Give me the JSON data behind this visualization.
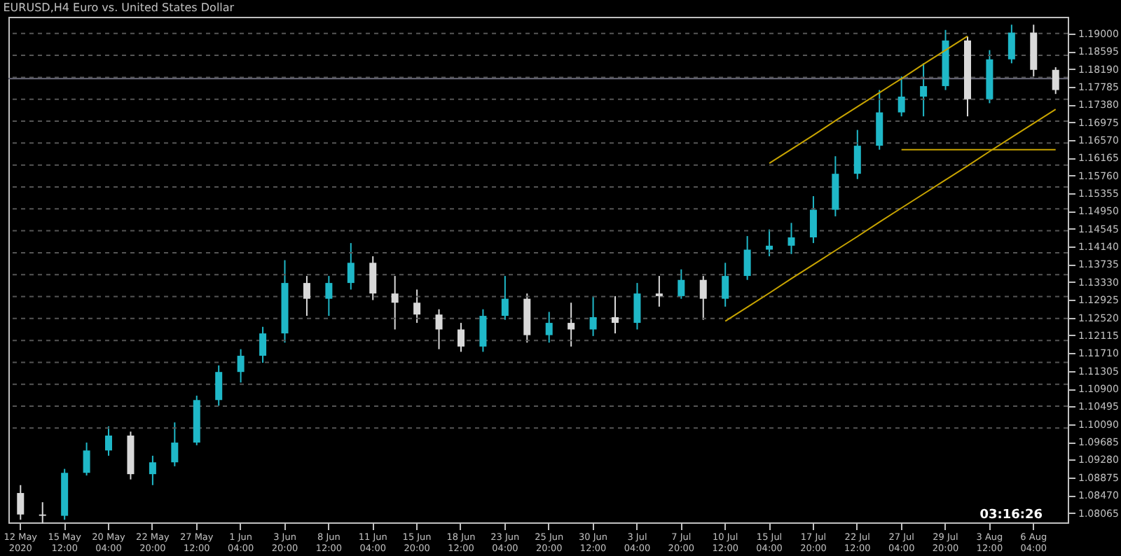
{
  "chart_data": {
    "type": "candlestick",
    "title": "EURUSD,H4  Euro vs. United States Dollar",
    "categories": [
      "12 May 2020",
      null,
      "15 May 12:00",
      null,
      "20 May 04:00",
      null,
      "22 May 20:00",
      null,
      "27 May 12:00",
      null,
      "1 Jun 04:00",
      null,
      "3 Jun 20:00",
      null,
      "8 Jun 12:00",
      null,
      "11 Jun 04:00",
      null,
      "15 Jun 20:00",
      null,
      "18 Jun 12:00",
      null,
      "23 Jun 04:00",
      null,
      "25 Jun 20:00",
      null,
      "30 Jun 12:00",
      null,
      "3 Jul 04:00",
      null,
      "7 Jul 20:00",
      null,
      "10 Jul 12:00",
      null,
      "15 Jul 04:00",
      null,
      "17 Jul 20:00",
      null,
      "22 Jul 12:00",
      null,
      "27 Jul 04:00",
      null,
      "29 Jul 20:00",
      null,
      "3 Aug 12:00",
      null,
      "6 Aug 04:00",
      null
    ],
    "ohlc": [
      [
        1.0852,
        1.087,
        1.0791,
        1.0803
      ],
      [
        1.0803,
        1.0831,
        1.0782,
        1.08
      ],
      [
        1.08,
        1.0907,
        1.0791,
        1.0898
      ],
      [
        1.0898,
        1.0967,
        1.0892,
        1.0949
      ],
      [
        1.0949,
        1.1004,
        1.0937,
        1.0983
      ],
      [
        1.0983,
        1.0992,
        1.0883,
        1.0895
      ],
      [
        1.0895,
        1.0937,
        1.087,
        1.0922
      ],
      [
        1.0922,
        1.1013,
        1.0913,
        1.0967
      ],
      [
        1.0967,
        1.1074,
        1.0961,
        1.1064
      ],
      [
        1.1064,
        1.1143,
        1.1051,
        1.1128
      ],
      [
        1.1128,
        1.118,
        1.1104,
        1.1165
      ],
      [
        1.1165,
        1.1231,
        1.1149,
        1.1216
      ],
      [
        1.1216,
        1.1383,
        1.1195,
        1.1331
      ],
      [
        1.1331,
        1.1347,
        1.1256,
        1.1295
      ],
      [
        1.1295,
        1.1347,
        1.1256,
        1.1331
      ],
      [
        1.1331,
        1.1422,
        1.1316,
        1.1377
      ],
      [
        1.1377,
        1.1392,
        1.1292,
        1.1307
      ],
      [
        1.1307,
        1.1347,
        1.1225,
        1.1286
      ],
      [
        1.1286,
        1.1316,
        1.124,
        1.1259
      ],
      [
        1.1259,
        1.1271,
        1.118,
        1.1225
      ],
      [
        1.1225,
        1.124,
        1.1174,
        1.1186
      ],
      [
        1.1186,
        1.1271,
        1.1174,
        1.1256
      ],
      [
        1.1256,
        1.1347,
        1.1247,
        1.1295
      ],
      [
        1.1295,
        1.1307,
        1.1195,
        1.1212
      ],
      [
        1.1212,
        1.1265,
        1.1195,
        1.124
      ],
      [
        1.124,
        1.1286,
        1.1186,
        1.1225
      ],
      [
        1.1225,
        1.1301,
        1.121,
        1.1253
      ],
      [
        1.1253,
        1.1301,
        1.1216,
        1.124
      ],
      [
        1.124,
        1.1331,
        1.1225,
        1.1307
      ],
      [
        1.1307,
        1.1347,
        1.1277,
        1.1301
      ],
      [
        1.1301,
        1.1362,
        1.1295,
        1.1338
      ],
      [
        1.1338,
        1.1347,
        1.1247,
        1.1295
      ],
      [
        1.1295,
        1.1377,
        1.1277,
        1.1347
      ],
      [
        1.1347,
        1.1438,
        1.1338,
        1.1407
      ],
      [
        1.1407,
        1.1453,
        1.1392,
        1.1416
      ],
      [
        1.1416,
        1.1468,
        1.1397,
        1.1435
      ],
      [
        1.1435,
        1.1529,
        1.1422,
        1.1498
      ],
      [
        1.1498,
        1.162,
        1.1483,
        1.158
      ],
      [
        1.158,
        1.168,
        1.1568,
        1.1644
      ],
      [
        1.1644,
        1.1771,
        1.1635,
        1.172
      ],
      [
        1.172,
        1.1802,
        1.1711,
        1.1756
      ],
      [
        1.1756,
        1.1832,
        1.1711,
        1.178
      ],
      [
        1.178,
        1.1908,
        1.1771,
        1.1884
      ],
      [
        1.1884,
        1.1893,
        1.1711,
        1.175
      ],
      [
        1.175,
        1.1862,
        1.1741,
        1.1841
      ],
      [
        1.1841,
        1.192,
        1.1832,
        1.1902
      ],
      [
        1.1902,
        1.192,
        1.1802,
        1.1817
      ],
      [
        1.1817,
        1.1823,
        1.1762,
        1.1771
      ]
    ],
    "colors": [
      "#d9d9d9",
      "#d9d9d9",
      "#1fb8c8",
      "#1fb8c8",
      "#1fb8c8",
      "#d9d9d9",
      "#1fb8c8",
      "#1fb8c8",
      "#1fb8c8",
      "#1fb8c8",
      "#1fb8c8",
      "#1fb8c8",
      "#1fb8c8",
      "#d9d9d9",
      "#1fb8c8",
      "#1fb8c8",
      "#d9d9d9",
      "#d9d9d9",
      "#d9d9d9",
      "#d9d9d9",
      "#d9d9d9",
      "#1fb8c8",
      "#1fb8c8",
      "#d9d9d9",
      "#1fb8c8",
      "#d9d9d9",
      "#1fb8c8",
      "#d9d9d9",
      "#1fb8c8",
      "#d9d9d9",
      "#1fb8c8",
      "#d9d9d9",
      "#1fb8c8",
      "#1fb8c8",
      "#1fb8c8",
      "#1fb8c8",
      "#1fb8c8",
      "#1fb8c8",
      "#1fb8c8",
      "#1fb8c8",
      "#1fb8c8",
      "#1fb8c8",
      "#1fb8c8",
      "#d9d9d9",
      "#1fb8c8",
      "#1fb8c8",
      "#d9d9d9",
      "#d9d9d9"
    ],
    "series": [
      {
        "type": "line",
        "color": "#c8a400",
        "values": [
          null,
          null,
          null,
          null,
          null,
          null,
          null,
          null,
          null,
          null,
          null,
          null,
          null,
          null,
          null,
          null,
          null,
          null,
          null,
          null,
          null,
          null,
          null,
          null,
          null,
          null,
          null,
          null,
          null,
          null,
          null,
          null,
          1.1244,
          1.1276,
          1.1308,
          1.1341,
          1.1373,
          1.1405,
          1.1437,
          1.147,
          1.1502,
          1.1534,
          1.1566,
          1.1598,
          1.1631,
          1.1663,
          1.1695,
          1.1727
        ]
      },
      {
        "type": "line",
        "color": "#c8a400",
        "values": [
          null,
          null,
          null,
          null,
          null,
          null,
          null,
          null,
          null,
          null,
          null,
          null,
          null,
          null,
          null,
          null,
          null,
          null,
          null,
          null,
          null,
          null,
          null,
          null,
          null,
          null,
          null,
          null,
          null,
          null,
          null,
          null,
          null,
          null,
          1.1604,
          1.1636,
          1.1668,
          1.1701,
          1.1733,
          1.1765,
          1.1797,
          1.183,
          1.1862,
          1.1894,
          null,
          null,
          null,
          null
        ]
      },
      {
        "type": "line",
        "color": "#c8a400",
        "values": [
          null,
          null,
          null,
          null,
          null,
          null,
          null,
          null,
          null,
          null,
          null,
          null,
          null,
          null,
          null,
          null,
          null,
          null,
          null,
          null,
          null,
          null,
          null,
          null,
          null,
          null,
          null,
          null,
          null,
          null,
          null,
          null,
          null,
          null,
          null,
          null,
          null,
          null,
          null,
          null,
          1.1635,
          1.1635,
          1.1635,
          1.1635,
          1.1635,
          1.1635,
          1.1635,
          1.1635
        ]
      }
    ],
    "ylim": [
      1.0785,
      1.1938
    ],
    "yticks": [
      {
        "value": 1.08065,
        "label": "1.08065"
      },
      {
        "value": 1.0847,
        "label": "1.08470"
      },
      {
        "value": 1.08875,
        "label": "1.08875"
      },
      {
        "value": 1.0928,
        "label": "1.09280"
      },
      {
        "value": 1.09685,
        "label": "1.09685"
      },
      {
        "value": 1.1009,
        "label": "1.10090"
      },
      {
        "value": 1.10495,
        "label": "1.10495"
      },
      {
        "value": 1.109,
        "label": "1.10900"
      },
      {
        "value": 1.11305,
        "label": "1.11305"
      },
      {
        "value": 1.1171,
        "label": "1.11710"
      },
      {
        "value": 1.12115,
        "label": "1.12115"
      },
      {
        "value": 1.1252,
        "label": "1.12520"
      },
      {
        "value": 1.12925,
        "label": "1.12925"
      },
      {
        "value": 1.1333,
        "label": "1.13330"
      },
      {
        "value": 1.13735,
        "label": "1.13735"
      },
      {
        "value": 1.1414,
        "label": "1.14140"
      },
      {
        "value": 1.14545,
        "label": "1.14545"
      },
      {
        "value": 1.1495,
        "label": "1.14950"
      },
      {
        "value": 1.15355,
        "label": "1.15355"
      },
      {
        "value": 1.1576,
        "label": "1.15760"
      },
      {
        "value": 1.16165,
        "label": "1.16165"
      },
      {
        "value": 1.1657,
        "label": "1.16570"
      },
      {
        "value": 1.16975,
        "label": "1.16975"
      },
      {
        "value": 1.1738,
        "label": "1.17380"
      },
      {
        "value": 1.17785,
        "label": "1.17785"
      },
      {
        "value": 1.1819,
        "label": "1.18190"
      },
      {
        "value": 1.18595,
        "label": "1.18595"
      },
      {
        "value": 1.19,
        "label": "1.19000"
      }
    ],
    "ref_lines": [
      {
        "axis": "y",
        "value": 1.19,
        "color": "#555555",
        "line_style": "dashed"
      },
      {
        "axis": "y",
        "value": 1.185,
        "color": "#555555",
        "line_style": "dashed"
      },
      {
        "axis": "y",
        "value": 1.18,
        "color": "#555555",
        "line_style": "dashed"
      },
      {
        "axis": "y",
        "value": 1.175,
        "color": "#555555",
        "line_style": "dashed"
      },
      {
        "axis": "y",
        "value": 1.17,
        "color": "#555555",
        "line_style": "dashed"
      },
      {
        "axis": "y",
        "value": 1.165,
        "color": "#555555",
        "line_style": "dashed"
      },
      {
        "axis": "y",
        "value": 1.16,
        "color": "#555555",
        "line_style": "dashed"
      },
      {
        "axis": "y",
        "value": 1.155,
        "color": "#555555",
        "line_style": "dashed"
      },
      {
        "axis": "y",
        "value": 1.15,
        "color": "#555555",
        "line_style": "dashed"
      },
      {
        "axis": "y",
        "value": 1.145,
        "color": "#555555",
        "line_style": "dashed"
      },
      {
        "axis": "y",
        "value": 1.14,
        "color": "#555555",
        "line_style": "dashed"
      },
      {
        "axis": "y",
        "value": 1.135,
        "color": "#555555",
        "line_style": "dashed"
      },
      {
        "axis": "y",
        "value": 1.13,
        "color": "#555555",
        "line_style": "dashed"
      },
      {
        "axis": "y",
        "value": 1.125,
        "color": "#555555",
        "line_style": "dashed"
      },
      {
        "axis": "y",
        "value": 1.12,
        "color": "#555555",
        "line_style": "dashed"
      },
      {
        "axis": "y",
        "value": 1.115,
        "color": "#555555",
        "line_style": "dashed"
      },
      {
        "axis": "y",
        "value": 1.11,
        "color": "#555555",
        "line_style": "dashed"
      },
      {
        "axis": "y",
        "value": 1.105,
        "color": "#555555",
        "line_style": "dashed"
      },
      {
        "axis": "y",
        "value": 1.1,
        "color": "#555555",
        "line_style": "dashed"
      },
      {
        "axis": "y",
        "value": 1.1797,
        "color": "#6a6a7a",
        "line_style": "solid"
      }
    ],
    "annotations": [
      "03:16:26"
    ]
  }
}
